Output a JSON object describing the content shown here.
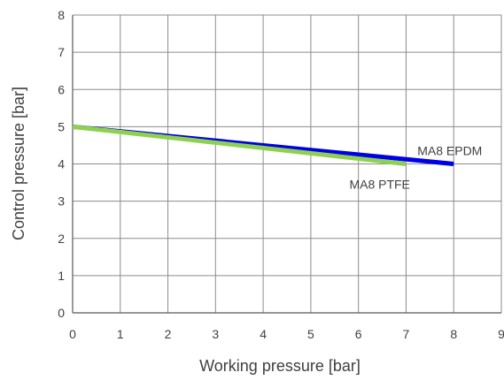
{
  "chart_data": {
    "type": "line",
    "xlabel": "Working pressure [bar]",
    "ylabel": "Control pressure [bar]",
    "xlim": [
      0,
      9
    ],
    "ylim": [
      0,
      8
    ],
    "xticks": [
      "0",
      "1",
      "2",
      "3",
      "4",
      "5",
      "6",
      "7",
      "8",
      "9"
    ],
    "yticks": [
      "0",
      "1",
      "2",
      "3",
      "4",
      "5",
      "6",
      "7",
      "8"
    ],
    "grid": true,
    "series": [
      {
        "name": "MA8 EPDM",
        "color": "#0000E6",
        "x": [
          0,
          8
        ],
        "y": [
          5,
          4
        ]
      },
      {
        "name": "MA8 PTFE",
        "color": "#8FD14F",
        "x": [
          0,
          7
        ],
        "y": [
          5,
          4
        ]
      }
    ]
  }
}
